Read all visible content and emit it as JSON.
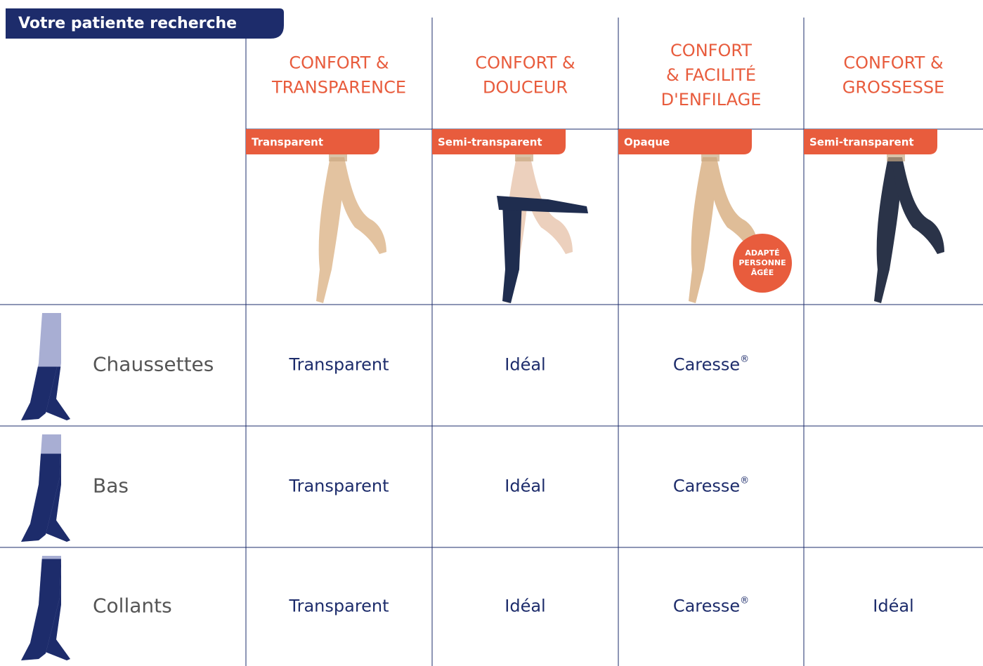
{
  "header": {
    "title": "Votre patiente recherche"
  },
  "columns": [
    {
      "heading": [
        "CONFORT &",
        "TRANSPARENCE"
      ],
      "tag": "Transparent"
    },
    {
      "heading": [
        "CONFORT &",
        "DOUCEUR"
      ],
      "tag": "Semi-transparent"
    },
    {
      "heading": [
        "CONFORT",
        "& FACILITÉ",
        "D'ENFILAGE"
      ],
      "tag": "Opaque",
      "badge": [
        "ADAPTÉ",
        "PERSONNE",
        "ÂGÉE"
      ]
    },
    {
      "heading": [
        "CONFORT &",
        "GROSSESSE"
      ],
      "tag": "Semi-transparent"
    }
  ],
  "rows": [
    {
      "label": "Chaussettes",
      "cells": [
        {
          "text": "Transparent"
        },
        {
          "text": "Idéal"
        },
        {
          "text": "Caresse",
          "sup": "®"
        },
        null
      ]
    },
    {
      "label": "Bas",
      "cells": [
        {
          "text": "Transparent"
        },
        {
          "text": "Idéal"
        },
        {
          "text": "Caresse",
          "sup": "®"
        },
        null
      ]
    },
    {
      "label": "Collants",
      "cells": [
        {
          "text": "Transparent"
        },
        {
          "text": "Idéal"
        },
        {
          "text": "Caresse",
          "sup": "®"
        },
        {
          "text": "Idéal"
        }
      ]
    }
  ]
}
